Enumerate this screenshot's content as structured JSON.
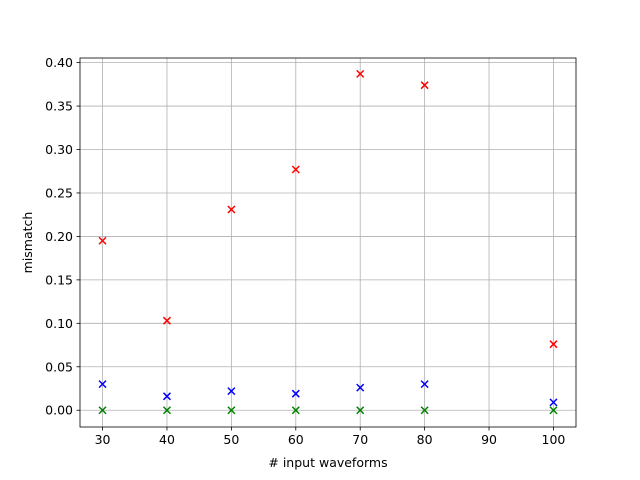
{
  "chart_data": {
    "type": "scatter",
    "title": "",
    "xlabel": "# input waveforms",
    "ylabel": "mismatch",
    "xlim": [
      26.5,
      103.5
    ],
    "ylim": [
      -0.0193,
      0.4053
    ],
    "grid": true,
    "legend": "none",
    "xticks": [
      30,
      40,
      50,
      60,
      70,
      80,
      90,
      100
    ],
    "xtick_labels": [
      "30",
      "40",
      "50",
      "60",
      "70",
      "80",
      "90",
      "100"
    ],
    "yticks": [
      0.0,
      0.05,
      0.1,
      0.15,
      0.2,
      0.25,
      0.3,
      0.35,
      0.4
    ],
    "ytick_labels": [
      "0.00",
      "0.05",
      "0.10",
      "0.15",
      "0.20",
      "0.25",
      "0.30",
      "0.35",
      "0.40"
    ],
    "marker": "x",
    "series": [
      {
        "color": "#ff0000",
        "points": [
          [
            30,
            0.195
          ],
          [
            40,
            0.103
          ],
          [
            50,
            0.231
          ],
          [
            60,
            0.277
          ],
          [
            70,
            0.387
          ],
          [
            80,
            0.374
          ],
          [
            100,
            0.076
          ]
        ]
      },
      {
        "color": "#0000ff",
        "points": [
          [
            30,
            0.03
          ],
          [
            40,
            0.016
          ],
          [
            50,
            0.022
          ],
          [
            60,
            0.019
          ],
          [
            70,
            0.026
          ],
          [
            80,
            0.03
          ],
          [
            100,
            0.009
          ]
        ]
      },
      {
        "color": "#008000",
        "points": [
          [
            30,
            0.0
          ],
          [
            40,
            0.0
          ],
          [
            50,
            0.0
          ],
          [
            60,
            0.0
          ],
          [
            70,
            0.0
          ],
          [
            80,
            0.0
          ],
          [
            100,
            0.0
          ]
        ]
      }
    ]
  }
}
